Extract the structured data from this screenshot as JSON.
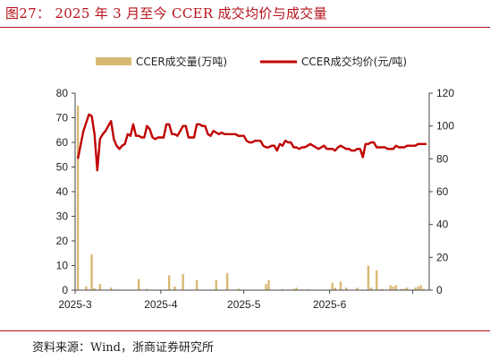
{
  "title": "图27： 2025 年 3 月至今 CCER 成交均价与成交量",
  "source": "资料来源：Wind，浙商证券研究所",
  "colors": {
    "bar": "#d8b972",
    "line": "#c00000",
    "title": "#b5121b"
  },
  "chart_data": {
    "type": "bar+line",
    "legend_position": "top",
    "grid": false,
    "x_tick_labels": [
      "2025-3",
      "2025-4",
      "2025-5",
      "2025-6"
    ],
    "y_left": {
      "ticks": [
        "0",
        "10",
        "20",
        "30",
        "40",
        "50",
        "60",
        "70",
        "80"
      ],
      "range": [
        0,
        80
      ]
    },
    "y_right": {
      "ticks": [
        "0",
        "20",
        "40",
        "60",
        "80",
        "100",
        "120"
      ],
      "range": [
        0,
        120
      ]
    },
    "series": [
      {
        "name": "CCER成交量(万吨)",
        "kind": "bar",
        "axis": "left",
        "x_day": [
          1,
          4,
          6,
          7,
          9,
          13,
          23,
          26,
          34,
          36,
          39,
          44,
          51,
          55,
          59,
          69,
          70,
          75,
          79,
          80,
          82,
          84,
          93,
          94,
          96,
          98,
          102,
          106,
          107,
          109,
          111,
          114,
          115,
          116,
          118,
          119,
          120,
          123,
          124,
          125,
          126
        ],
        "values": [
          75,
          1.5,
          14.5,
          0.8,
          2.5,
          1,
          4.5,
          0.5,
          6,
          1.5,
          6.5,
          4,
          4,
          7,
          0.6,
          2.5,
          4,
          0.4,
          0.5,
          1,
          0.3,
          0.3,
          3,
          1,
          3.5,
          1,
          1,
          10,
          1,
          8,
          0.5,
          2,
          1.5,
          2,
          0.5,
          0.6,
          1,
          1,
          1.5,
          2,
          0.5
        ]
      },
      {
        "name": "CCER成交均价(元/吨)",
        "kind": "line",
        "axis": "right",
        "x_day": [
          1,
          3,
          5,
          6,
          7,
          8,
          9,
          10,
          11,
          13,
          14,
          15,
          16,
          17,
          18,
          19,
          20,
          21,
          22,
          23,
          24,
          25,
          26,
          27,
          28,
          29,
          30,
          31,
          32,
          33,
          34,
          35,
          36,
          37,
          38,
          39,
          40,
          41,
          42,
          43,
          44,
          45,
          46,
          47,
          48,
          49,
          50,
          51,
          52,
          53,
          54,
          55,
          56,
          57,
          58,
          59,
          60,
          61,
          62,
          63,
          64,
          65,
          66,
          67,
          68,
          69,
          70,
          71,
          72,
          73,
          74,
          75,
          76,
          77,
          78,
          79,
          80,
          81,
          82,
          83,
          84,
          85,
          86,
          87,
          88,
          89,
          90,
          91,
          92,
          93,
          94,
          95,
          96,
          97,
          98,
          99,
          100,
          101,
          102,
          103,
          104,
          105,
          106,
          107,
          108,
          109,
          110,
          111,
          112,
          113,
          114,
          115,
          116,
          117,
          118,
          119,
          120,
          121,
          122,
          123,
          124,
          125,
          126,
          127
        ],
        "values": [
          80,
          97,
          107,
          106,
          95,
          73,
          92,
          95,
          97,
          103,
          92,
          88,
          86,
          88,
          89,
          95,
          94,
          101,
          94,
          94,
          93,
          93,
          100,
          98,
          93,
          92,
          93,
          93,
          93,
          101,
          101,
          95,
          95,
          94,
          97,
          100,
          100,
          93,
          93,
          93,
          101,
          101,
          100,
          100,
          95,
          94,
          97,
          96,
          95,
          96,
          95,
          95,
          95,
          95,
          95,
          94,
          94,
          94,
          91,
          90,
          90,
          91,
          91,
          91,
          88,
          87,
          87,
          88,
          88,
          85,
          89,
          88,
          91,
          90,
          90,
          87,
          87,
          86,
          87,
          87,
          88,
          89,
          88,
          87,
          86,
          87,
          88,
          86,
          86,
          86,
          85,
          87,
          88,
          87,
          86,
          86,
          85,
          85,
          86,
          86,
          81,
          89,
          89,
          90,
          90,
          87,
          87,
          87,
          87,
          86,
          86,
          86,
          88,
          87,
          87,
          87,
          88,
          88,
          88,
          88,
          89,
          89,
          89,
          89
        ]
      }
    ]
  }
}
